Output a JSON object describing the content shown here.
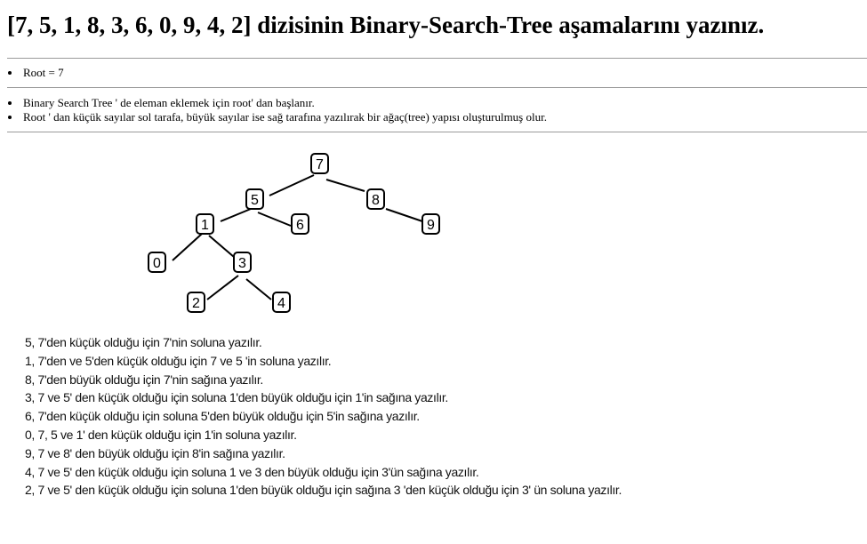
{
  "title": "[7, 5, 1, 8, 3, 6, 0, 9, 4, 2] dizisinin Binary-Search-Tree aşamalarını yazınız.",
  "root_list": [
    "Root = 7"
  ],
  "info_list": [
    "Binary Search Tree ' de eleman eklemek için root' dan başlanır.",
    "Root ' dan küçük sayılar sol tarafa, büyük sayılar ise sağ tarafına yazılırak bir ağaç(tree) yapısı oluşturulmuş olur."
  ],
  "tree": {
    "nodes": {
      "n7": "7",
      "n5": "5",
      "n8": "8",
      "n1": "1",
      "n6": "6",
      "n9": "9",
      "n0": "0",
      "n3": "3",
      "n2": "2",
      "n4": "4"
    }
  },
  "steps": [
    "5,  7'den küçük olduğu için 7'nin soluna yazılır.",
    "1, 7'den ve 5'den küçük olduğu için 7 ve 5 'in soluna yazılır.",
    "8, 7'den büyük olduğu için 7'nin sağına yazılır.",
    "3, 7 ve 5' den küçük olduğu için soluna 1'den büyük olduğu için 1'in sağına yazılır.",
    "6, 7'den küçük olduğu için soluna 5'den büyük olduğu için 5'in sağına yazılır.",
    "0, 7, 5 ve 1' den küçük olduğu için 1'in soluna yazılır.",
    "9, 7 ve 8' den büyük olduğu için 8'in sağına yazılır.",
    "4, 7 ve 5' den küçük olduğu için soluna 1 ve 3 den büyük olduğu için 3'ün sağına yazılır.",
    "2, 7 ve 5' den küçük olduğu için soluna 1'den büyük olduğu için sağına 3 'den küçük olduğu için 3' ün soluna yazılır."
  ]
}
